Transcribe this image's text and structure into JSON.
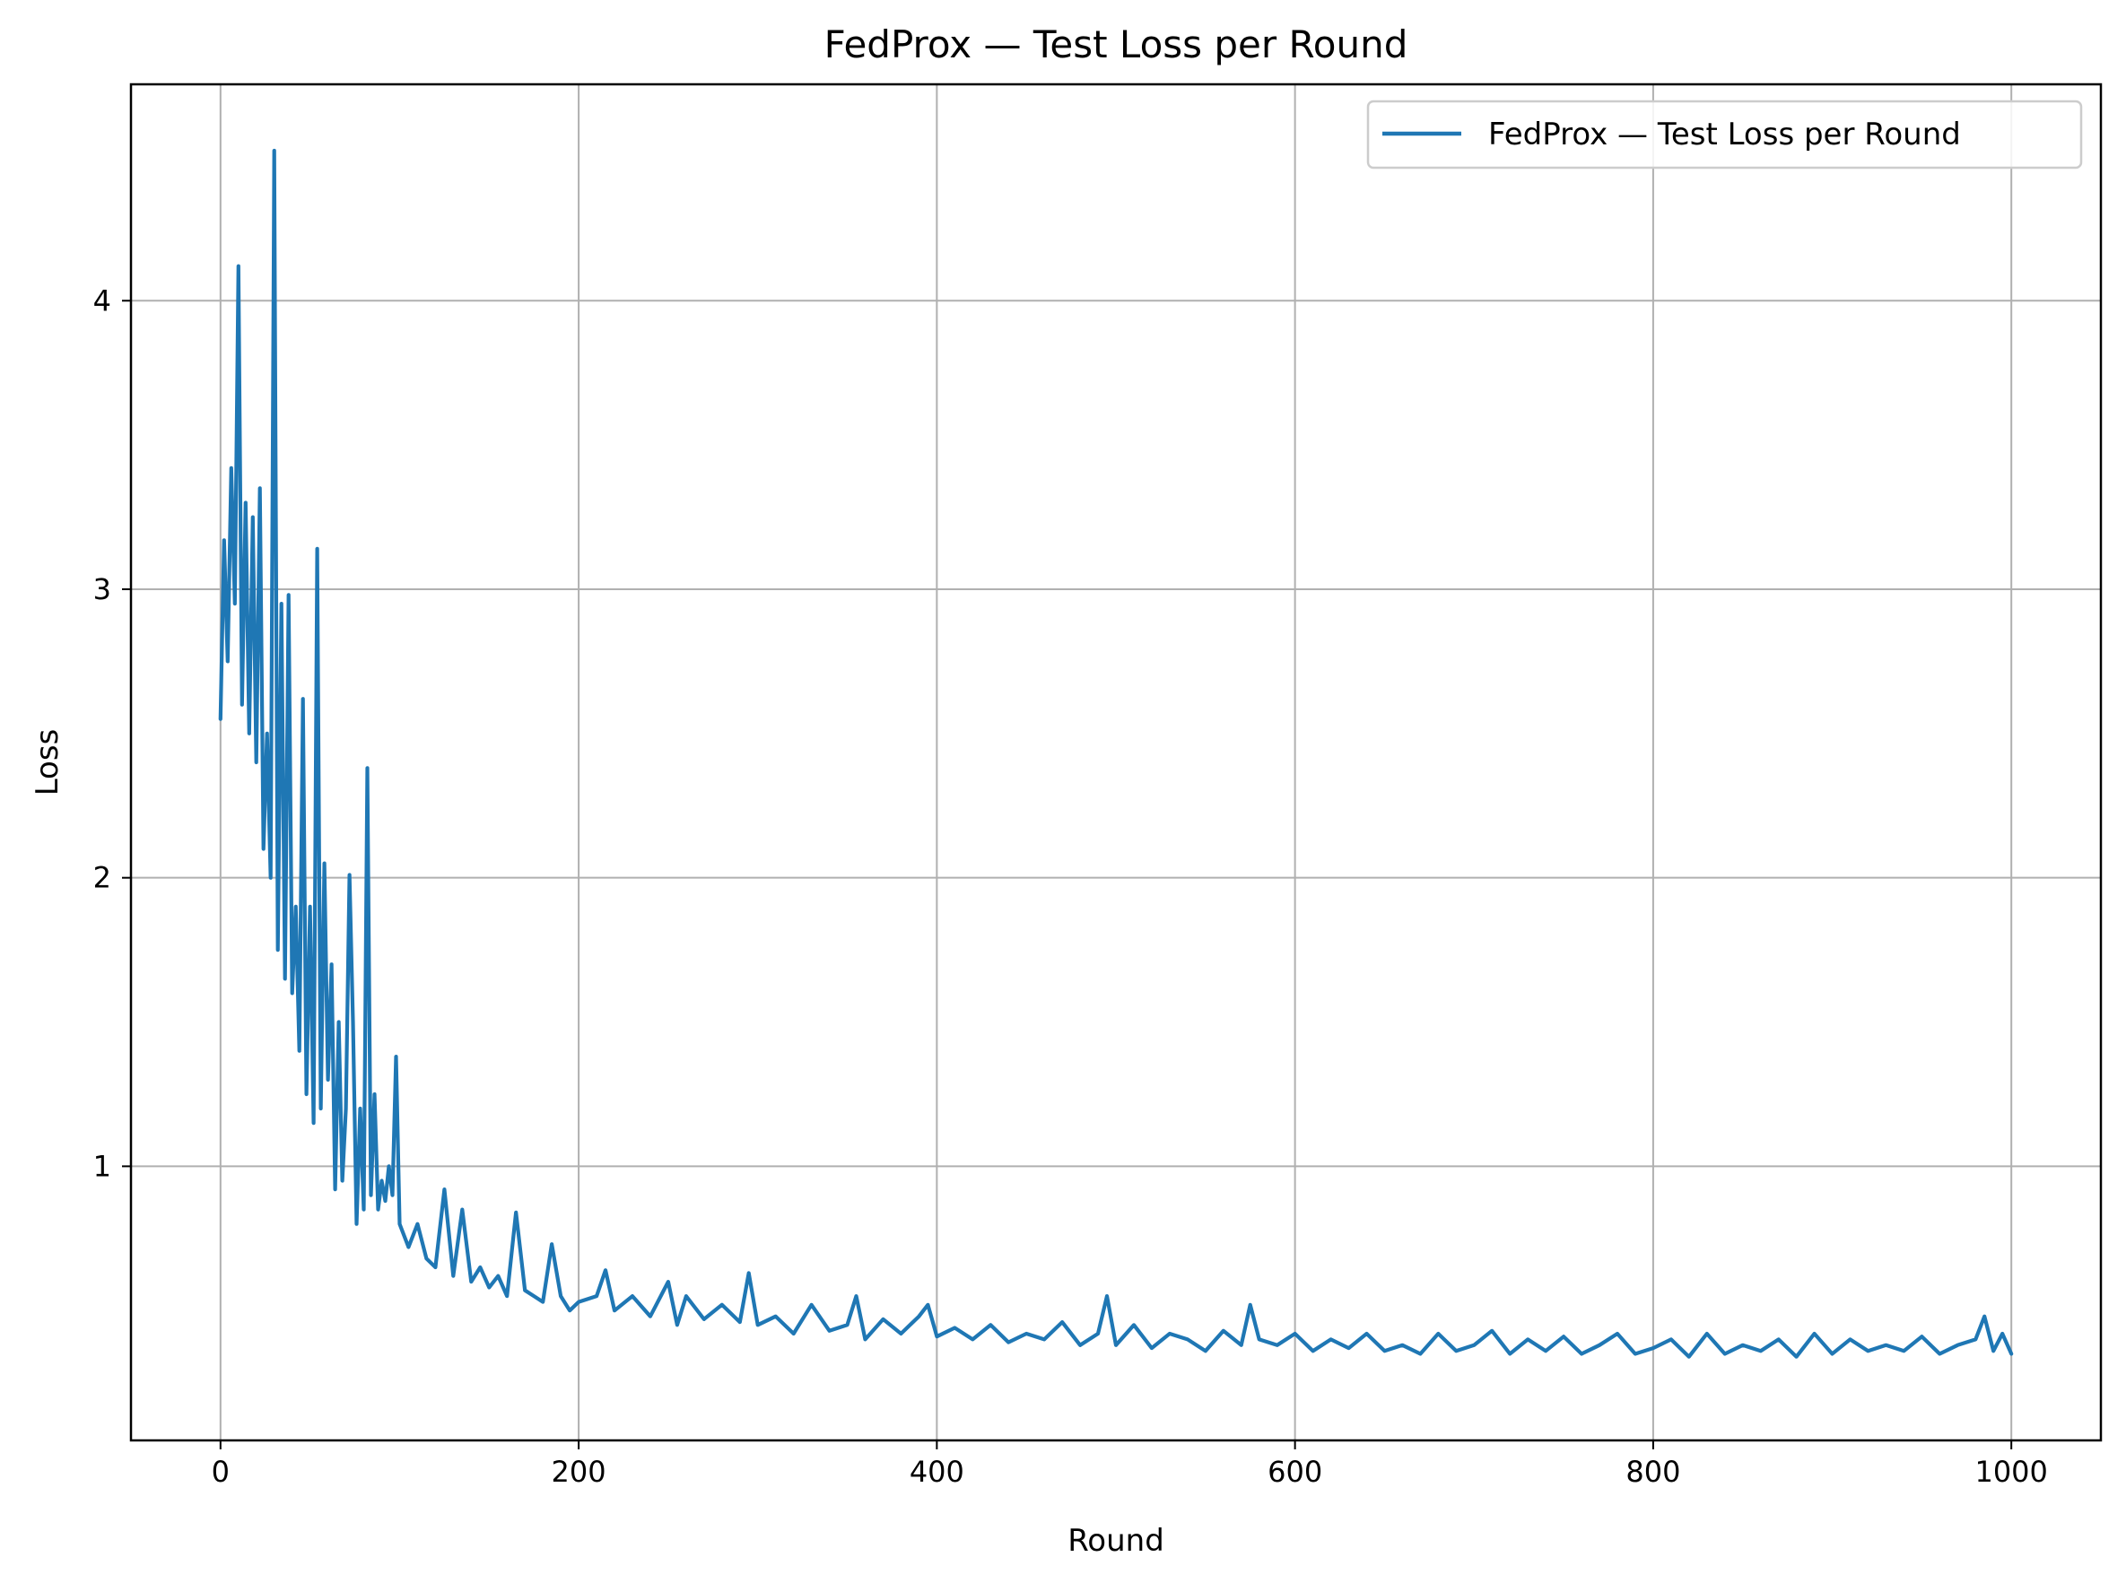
{
  "chart_data": {
    "type": "line",
    "title": "FedProx — Test Loss per Round",
    "xlabel": "Round",
    "ylabel": "Loss",
    "xlim": [
      -50,
      1050
    ],
    "ylim": [
      0.05,
      4.75
    ],
    "xticks": [
      0,
      200,
      400,
      600,
      800,
      1000
    ],
    "yticks": [
      1,
      2,
      3,
      4
    ],
    "grid": true,
    "legend_position": "top-right",
    "color": "#1f77b4",
    "series": [
      {
        "name": "FedProx — Test Loss per Round",
        "x": [
          0,
          2,
          4,
          6,
          8,
          10,
          12,
          14,
          16,
          18,
          20,
          22,
          24,
          26,
          28,
          30,
          32,
          34,
          36,
          38,
          40,
          42,
          44,
          46,
          48,
          50,
          52,
          54,
          56,
          58,
          60,
          62,
          64,
          66,
          68,
          70,
          72,
          74,
          76,
          78,
          80,
          82,
          84,
          86,
          88,
          90,
          92,
          94,
          96,
          98,
          100,
          105,
          110,
          115,
          120,
          125,
          130,
          135,
          140,
          145,
          150,
          155,
          160,
          165,
          170,
          175,
          180,
          185,
          190,
          195,
          200,
          210,
          215,
          220,
          230,
          240,
          250,
          255,
          260,
          270,
          280,
          290,
          295,
          300,
          310,
          320,
          330,
          340,
          350,
          355,
          360,
          370,
          380,
          390,
          395,
          400,
          410,
          420,
          430,
          440,
          450,
          460,
          470,
          480,
          490,
          495,
          500,
          510,
          520,
          530,
          540,
          550,
          560,
          570,
          575,
          580,
          590,
          600,
          610,
          620,
          630,
          640,
          650,
          660,
          670,
          680,
          690,
          700,
          710,
          720,
          730,
          740,
          750,
          760,
          770,
          780,
          790,
          800,
          810,
          820,
          830,
          840,
          850,
          860,
          870,
          880,
          890,
          900,
          910,
          920,
          930,
          940,
          950,
          960,
          970,
          980,
          985,
          990,
          995,
          1000
        ],
        "y": [
          2.55,
          3.17,
          2.75,
          3.42,
          2.95,
          4.12,
          2.6,
          3.3,
          2.5,
          3.25,
          2.4,
          3.35,
          2.1,
          2.5,
          2.0,
          4.52,
          1.75,
          2.95,
          1.65,
          2.98,
          1.6,
          1.9,
          1.4,
          2.62,
          1.25,
          1.9,
          1.15,
          3.14,
          1.2,
          2.05,
          1.3,
          1.7,
          0.92,
          1.5,
          0.95,
          1.2,
          2.01,
          1.5,
          0.8,
          1.2,
          0.85,
          2.38,
          0.9,
          1.25,
          0.85,
          0.95,
          0.88,
          1.0,
          0.9,
          1.38,
          0.8,
          0.72,
          0.8,
          0.68,
          0.65,
          0.92,
          0.62,
          0.85,
          0.6,
          0.65,
          0.58,
          0.62,
          0.55,
          0.84,
          0.57,
          0.55,
          0.53,
          0.73,
          0.55,
          0.5,
          0.53,
          0.55,
          0.64,
          0.5,
          0.55,
          0.48,
          0.6,
          0.45,
          0.55,
          0.47,
          0.52,
          0.46,
          0.63,
          0.45,
          0.48,
          0.42,
          0.52,
          0.43,
          0.45,
          0.55,
          0.4,
          0.47,
          0.42,
          0.48,
          0.52,
          0.41,
          0.44,
          0.4,
          0.45,
          0.39,
          0.42,
          0.4,
          0.46,
          0.38,
          0.42,
          0.55,
          0.38,
          0.45,
          0.37,
          0.42,
          0.4,
          0.36,
          0.43,
          0.38,
          0.52,
          0.4,
          0.38,
          0.42,
          0.36,
          0.4,
          0.37,
          0.42,
          0.36,
          0.38,
          0.35,
          0.42,
          0.36,
          0.38,
          0.43,
          0.35,
          0.4,
          0.36,
          0.41,
          0.35,
          0.38,
          0.42,
          0.35,
          0.37,
          0.4,
          0.34,
          0.42,
          0.35,
          0.38,
          0.36,
          0.4,
          0.34,
          0.42,
          0.35,
          0.4,
          0.36,
          0.38,
          0.36,
          0.41,
          0.35,
          0.38,
          0.4,
          0.48,
          0.36,
          0.42,
          0.35
        ]
      }
    ]
  }
}
